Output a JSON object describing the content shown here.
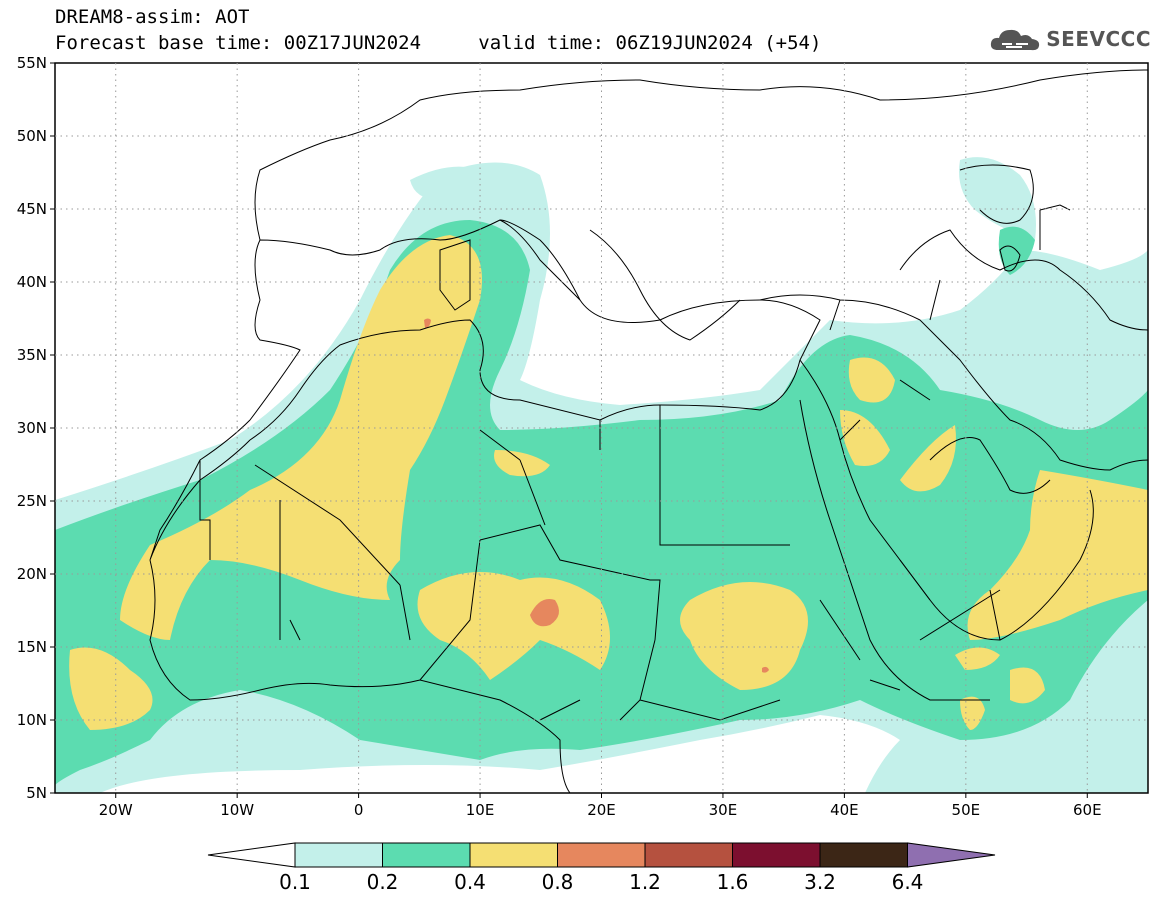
{
  "header": {
    "title": "DREAM8-assim: AOT",
    "base_label": "Forecast base time: 00Z17JUN2024",
    "valid_label": "valid time: 06Z19JUN2024 (+54)"
  },
  "logo": {
    "text": "SEEVCCC",
    "icon": "cloud-icon"
  },
  "map": {
    "projection": "lat-lon",
    "lon_range": [
      -25,
      65
    ],
    "lat_range": [
      5,
      55
    ],
    "lat_ticks": [
      "55N",
      "50N",
      "45N",
      "40N",
      "35N",
      "30N",
      "25N",
      "20N",
      "15N",
      "10N",
      "5N"
    ],
    "lon_ticks": [
      "20W",
      "10W",
      "0",
      "10E",
      "20E",
      "30E",
      "40E",
      "50E",
      "60E"
    ],
    "gridlines": "dotted"
  },
  "legend": {
    "labels": [
      "0.1",
      "0.2",
      "0.4",
      "0.8",
      "1.2",
      "1.6",
      "3.2",
      "6.4"
    ],
    "colors": [
      "#c3f0ea",
      "#5cdcb0",
      "#f5df73",
      "#e6875e",
      "#b5513f",
      "#7c0f2f",
      "#3c2616",
      "#8f6fb0"
    ]
  }
}
